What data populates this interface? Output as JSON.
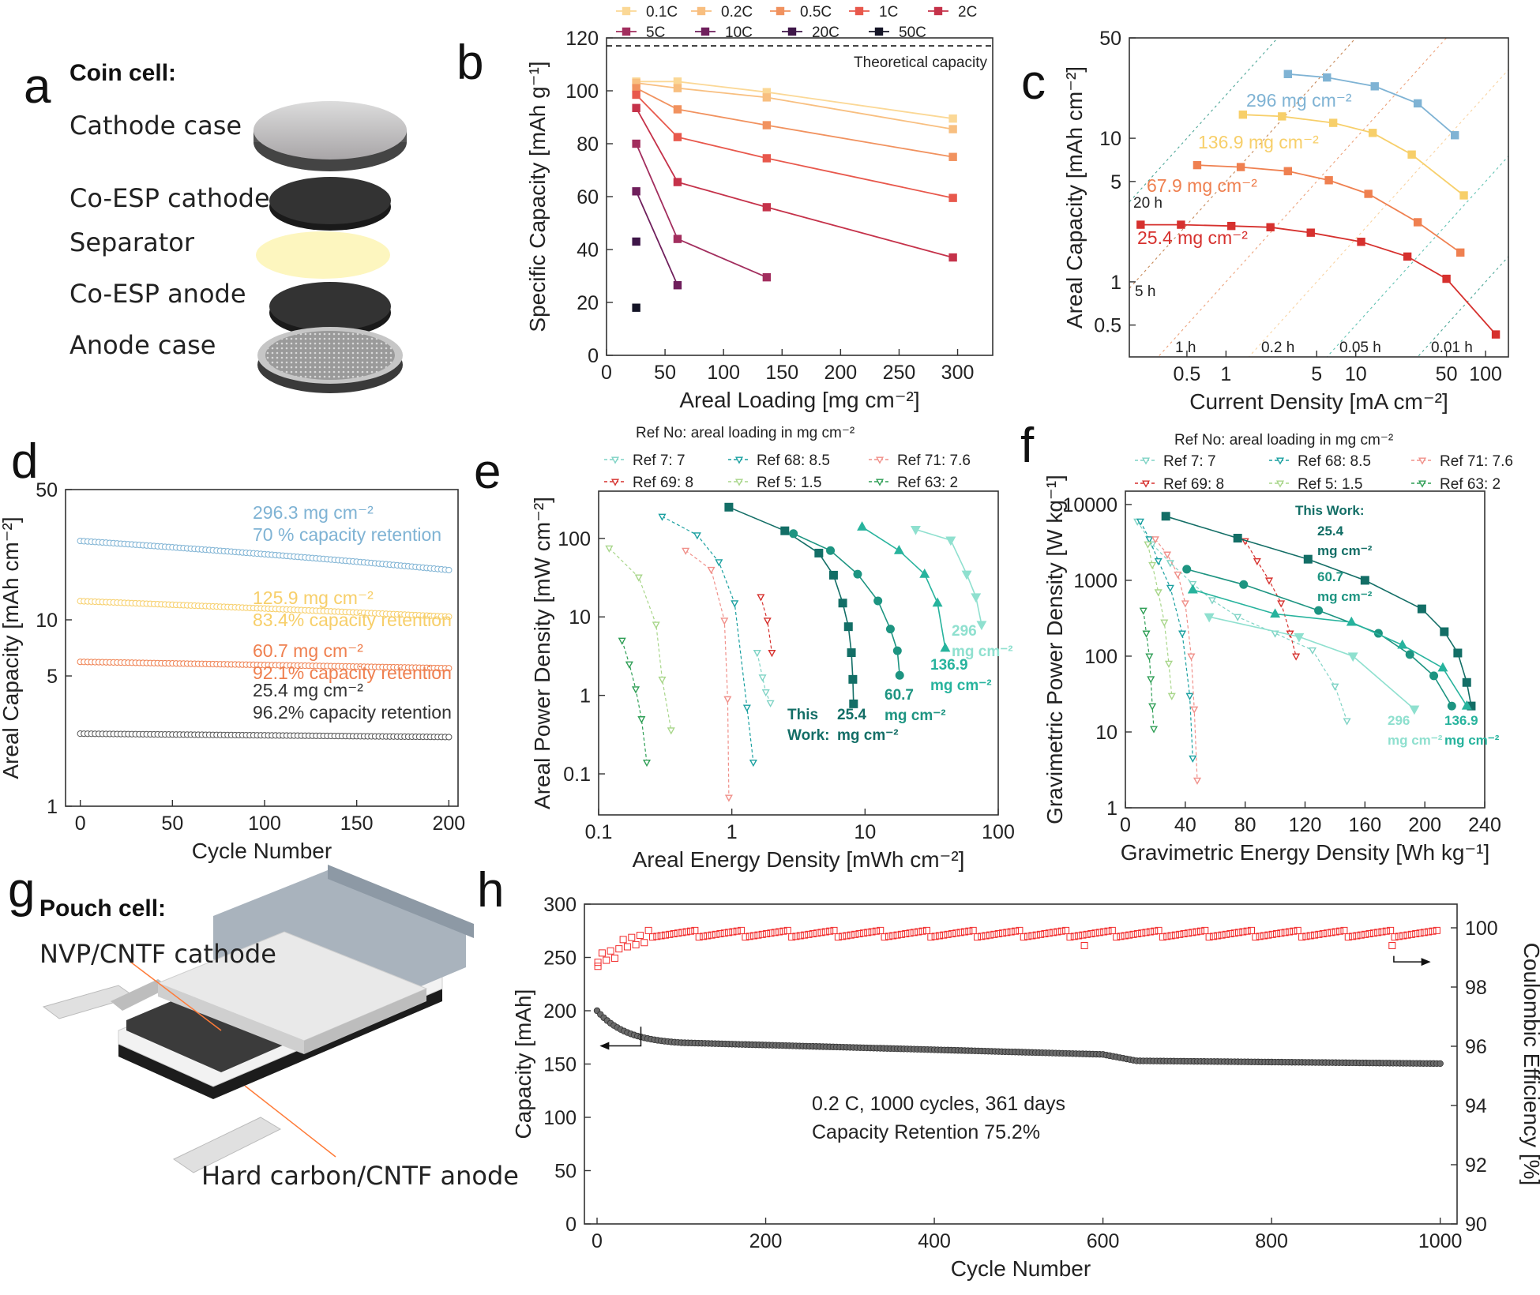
{
  "panel_letters": {
    "a": "a",
    "b": "b",
    "c": "c",
    "d": "d",
    "e": "e",
    "f": "f",
    "g": "g",
    "h": "h"
  },
  "coin_cell": {
    "title": "Coin cell:",
    "layers": [
      "Cathode case",
      "Co-ESP cathode",
      "Separator",
      "Co-ESP anode",
      "Anode case"
    ]
  },
  "pouch_cell": {
    "title": "Pouch cell:",
    "cathode": "NVP/CNTF cathode",
    "anode": "Hard carbon/CNTF anode"
  },
  "colors": {
    "rates": [
      "#fbd896",
      "#f8bf80",
      "#f1925f",
      "#e8584c",
      "#c5324a",
      "#a22e5e",
      "#6f1f5c",
      "#3e1648",
      "#141426"
    ],
    "c_296": "#7fb3d4",
    "c_136": "#f7cf6a",
    "c_67": "#ef8050",
    "c_25": "#d6312e",
    "teal_dark": "#136e66",
    "teal_mid": "#27b39d",
    "teal_light": "#8fe0cf",
    "red_ce": "#f22b2b",
    "grey": "#555555"
  },
  "chart_data": [
    {
      "id": "b",
      "type": "line",
      "xlabel": "Areal Loading [mg cm⁻²]",
      "ylabel": "Specific Capacity [mAh g⁻¹]",
      "xlim": [
        0,
        330
      ],
      "ylim": [
        0,
        120
      ],
      "xticks": [
        0,
        50,
        100,
        150,
        200,
        250,
        300
      ],
      "yticks": [
        0,
        20,
        40,
        60,
        80,
        100,
        120
      ],
      "annotation": "Theoretical capacity",
      "theoretical": 117,
      "legend": [
        "0.1C",
        "0.2C",
        "0.5C",
        "1C",
        "2C",
        "5C",
        "10C",
        "20C",
        "50C"
      ],
      "series": [
        {
          "name": "0.1C",
          "x": [
            25.4,
            60.7,
            136.9,
            296
          ],
          "values": [
            103.5,
            103.5,
            99.5,
            89.5
          ]
        },
        {
          "name": "0.2C",
          "x": [
            25.4,
            60.7,
            136.9,
            296
          ],
          "values": [
            103,
            101,
            97.5,
            85.5
          ]
        },
        {
          "name": "0.5C",
          "x": [
            25.4,
            60.7,
            136.9,
            296
          ],
          "values": [
            101,
            93,
            87,
            75
          ]
        },
        {
          "name": "1C",
          "x": [
            25.4,
            60.7,
            136.9,
            296
          ],
          "values": [
            98.5,
            82.5,
            74.5,
            59.5
          ]
        },
        {
          "name": "2C",
          "x": [
            25.4,
            60.7,
            136.9,
            296
          ],
          "values": [
            93.5,
            65.5,
            56,
            37
          ]
        },
        {
          "name": "5C",
          "x": [
            25.4,
            60.7,
            136.9
          ],
          "values": [
            80,
            44,
            29.5
          ]
        },
        {
          "name": "10C",
          "x": [
            25.4,
            60.7
          ],
          "values": [
            62,
            26.5
          ]
        },
        {
          "name": "20C",
          "x": [
            25.4
          ],
          "values": [
            43
          ]
        },
        {
          "name": "50C",
          "x": [
            25.4
          ],
          "values": [
            18
          ]
        }
      ]
    },
    {
      "id": "c",
      "type": "line",
      "scale": "log-log",
      "xlabel": "Current Density [mA cm⁻²]",
      "ylabel": "Areal Capacity [mAh cm⁻²]",
      "xlim": [
        0.18,
        150
      ],
      "ylim": [
        0.3,
        50
      ],
      "xticks": [
        0.5,
        1,
        5,
        10,
        50,
        100
      ],
      "xticklabels": [
        "0.5",
        "1",
        "5",
        "10",
        "50",
        "100"
      ],
      "yticks": [
        0.5,
        1,
        5,
        10,
        50
      ],
      "yticklabels": [
        "0.5",
        "1",
        "5",
        "10",
        "50"
      ],
      "time_lines": [
        "20 h",
        "5 h",
        "1 h",
        "0.2 h",
        "0.05 h",
        "0.01 h"
      ],
      "series": [
        {
          "name": "296 mg cm⁻²",
          "x": [
            3,
            6,
            14,
            30,
            58
          ],
          "values": [
            28,
            26.5,
            23,
            17.5,
            10.5
          ]
        },
        {
          "name": "136.9 mg cm⁻²",
          "x": [
            1.35,
            2.7,
            6.7,
            13.5,
            27,
            68
          ],
          "values": [
            14.6,
            14.2,
            12.8,
            10.9,
            7.7,
            4
          ]
        },
        {
          "name": "67.9 mg cm⁻²",
          "x": [
            0.6,
            1.3,
            3,
            6.2,
            12.5,
            30,
            64
          ],
          "values": [
            6.5,
            6.3,
            5.9,
            5.1,
            4.1,
            2.6,
            1.6
          ]
        },
        {
          "name": "25.4 mg cm⁻²",
          "x": [
            0.22,
            0.45,
            1.1,
            2.2,
            4.5,
            11,
            25,
            50,
            120
          ],
          "values": [
            2.5,
            2.5,
            2.45,
            2.4,
            2.2,
            1.9,
            1.5,
            1.05,
            0.43
          ]
        }
      ]
    },
    {
      "id": "d",
      "type": "scatter",
      "scale": "log-y",
      "xlabel": "Cycle Number",
      "ylabel": "Areal Capacity [mAh cm⁻²]",
      "xlim": [
        -8,
        205
      ],
      "ylim": [
        1,
        50
      ],
      "xticks": [
        0,
        50,
        100,
        150,
        200
      ],
      "yticks": [
        1,
        5,
        10,
        50
      ],
      "series": [
        {
          "name": "296.3 mg cm⁻²",
          "note": "70 % capacity retention",
          "start": 26.5,
          "end": 18.5
        },
        {
          "name": "125.9 mg cm⁻²",
          "note": "83.4% capacity retention",
          "start": 12.6,
          "end": 10.4
        },
        {
          "name": "60.7 mg cm⁻²",
          "note": "92.1% capacity retention",
          "start": 5.95,
          "end": 5.5
        },
        {
          "name": "25.4 mg cm⁻²",
          "note": "96.2% capacity retention",
          "start": 2.45,
          "end": 2.35
        }
      ]
    },
    {
      "id": "e",
      "type": "line",
      "scale": "log-log",
      "xlabel": "Areal Energy Density [mWh cm⁻²]",
      "ylabel": "Areal Power Density [mW cm⁻²]",
      "xlim": [
        0.1,
        100
      ],
      "ylim": [
        0.03,
        400
      ],
      "xticks": [
        0.1,
        1,
        10,
        100
      ],
      "xticklabels": [
        "0.1",
        "1",
        "10",
        "100"
      ],
      "yticks": [
        0.1,
        1,
        10,
        100
      ],
      "yticklabels": [
        "0.1",
        "1",
        "10",
        "100"
      ],
      "legend_title": "Ref No: areal loading in mg cm⁻²",
      "legend": [
        "Ref 7: 7",
        "Ref 68: 8.5",
        "Ref 71: 7.6",
        "Ref 69: 8",
        "Ref 5: 1.5",
        "Ref 63: 2"
      ],
      "series": [
        {
          "name": "Ref 7: 7",
          "x": [
            1.55,
            1.7,
            1.8,
            1.95
          ],
          "values": [
            3.5,
            1.7,
            1.1,
            0.8
          ]
        },
        {
          "name": "Ref 68: 8.5",
          "x": [
            0.3,
            0.55,
            0.8,
            1.05,
            1.3,
            1.45
          ],
          "values": [
            190,
            110,
            50,
            15,
            0.7,
            0.14
          ]
        },
        {
          "name": "Ref 71: 7.6",
          "x": [
            0.45,
            0.7,
            0.88,
            0.93,
            0.95
          ],
          "values": [
            70,
            40,
            9,
            0.9,
            0.05
          ]
        },
        {
          "name": "Ref 69: 8",
          "x": [
            1.65,
            1.85,
            2.0
          ],
          "values": [
            18,
            9,
            3.5
          ]
        },
        {
          "name": "Ref 5: 1.5",
          "x": [
            0.12,
            0.2,
            0.27,
            0.3,
            0.35
          ],
          "values": [
            75,
            32,
            8,
            1.6,
            0.36
          ]
        },
        {
          "name": "Ref 63: 2",
          "x": [
            0.15,
            0.17,
            0.19,
            0.21,
            0.23
          ],
          "values": [
            5,
            2.5,
            1.2,
            0.5,
            0.14
          ]
        },
        {
          "name": "25.4",
          "x": [
            0.95,
            2.5,
            4.5,
            5.8,
            6.8,
            7.5,
            7.9,
            8.1,
            8.2
          ],
          "values": [
            250,
            125,
            65,
            34,
            15,
            7.5,
            3.5,
            1.6,
            0.78
          ]
        },
        {
          "name": "60.7",
          "x": [
            2.9,
            5.5,
            8.8,
            12.5,
            15.5,
            17.5,
            18.2
          ],
          "values": [
            115,
            70,
            35,
            16,
            7,
            3.7,
            1.8
          ]
        },
        {
          "name": "136.9",
          "x": [
            9.5,
            18,
            28,
            35,
            40
          ],
          "values": [
            140,
            70,
            35,
            15,
            4
          ]
        },
        {
          "name": "296",
          "x": [
            24,
            44,
            58,
            68,
            75
          ],
          "values": [
            130,
            95,
            35,
            18,
            8
          ]
        }
      ],
      "labels": [
        "This",
        "Work:",
        "25.4",
        "mg cm⁻²",
        "60.7",
        "136.9",
        "296"
      ]
    },
    {
      "id": "f",
      "type": "line",
      "scale": "log-y",
      "xlabel": "Gravimetric Energy Density [Wh kg⁻¹]",
      "ylabel": "Gravimetric Power Density [W kg⁻¹]",
      "xlim": [
        0,
        240
      ],
      "ylim": [
        1,
        15000
      ],
      "xticks": [
        0,
        40,
        80,
        120,
        160,
        200,
        240
      ],
      "yticks": [
        1,
        10,
        100,
        1000,
        10000
      ],
      "legend_title": "Ref No: areal loading in mg cm⁻²",
      "legend": [
        "Ref 7: 7",
        "Ref 68: 8.5",
        "Ref 71: 7.6",
        "Ref 69: 8",
        "Ref 5: 1.5",
        "Ref 63: 2"
      ],
      "series": [
        {
          "name": "Ref 7: 7",
          "x": [
            8,
            18,
            30,
            45,
            58,
            75,
            100,
            125,
            140,
            148
          ],
          "values": [
            6000,
            3000,
            1700,
            900,
            550,
            330,
            200,
            120,
            40,
            14
          ]
        },
        {
          "name": "Ref 68: 8.5",
          "x": [
            10,
            16,
            22,
            30,
            38,
            43,
            45
          ],
          "values": [
            6000,
            3500,
            1800,
            800,
            200,
            30,
            4.5
          ]
        },
        {
          "name": "Ref 71: 7.6",
          "x": [
            20,
            28,
            35,
            40,
            44,
            46,
            48
          ],
          "values": [
            3500,
            2200,
            1200,
            500,
            100,
            20,
            2.3
          ]
        },
        {
          "name": "Ref 69: 8",
          "x": [
            80,
            88,
            96,
            104,
            110,
            114
          ],
          "values": [
            3300,
            1800,
            1000,
            500,
            200,
            100
          ]
        },
        {
          "name": "Ref 5: 1.5",
          "x": [
            15,
            18,
            22,
            26,
            29,
            31
          ],
          "values": [
            3000,
            1600,
            700,
            280,
            80,
            30
          ]
        },
        {
          "name": "Ref 63: 2",
          "x": [
            12,
            14,
            16,
            17,
            18,
            19
          ],
          "values": [
            400,
            200,
            100,
            50,
            22,
            11
          ]
        },
        {
          "name": "25.4",
          "x": [
            27,
            75,
            122,
            160,
            198,
            213,
            222,
            228,
            231
          ],
          "values": [
            7000,
            3600,
            1900,
            1000,
            420,
            210,
            110,
            45,
            22
          ]
        },
        {
          "name": "60.7",
          "x": [
            41,
            79,
            129,
            169,
            190,
            206,
            218
          ],
          "values": [
            1400,
            880,
            400,
            200,
            105,
            55,
            22
          ]
        },
        {
          "name": "136.9",
          "x": [
            45,
            100,
            151,
            185,
            212,
            228
          ],
          "values": [
            750,
            360,
            280,
            140,
            70,
            22
          ]
        },
        {
          "name": "296",
          "x": [
            56,
            116,
            152,
            193
          ],
          "values": [
            330,
            180,
            100,
            20
          ]
        }
      ],
      "labels": [
        "This Work:",
        "25.4",
        "mg cm⁻²",
        "60.7",
        "136.9",
        "296"
      ]
    },
    {
      "id": "h",
      "type": "scatter",
      "scale": "dual-axis",
      "xlabel": "Cycle Number",
      "ylabel": "Capacity [mAh]",
      "y2label": "Coulombic Efficiency [%]",
      "xlim": [
        -15,
        1020
      ],
      "ylim": [
        0,
        300
      ],
      "y2lim": [
        90,
        100.8
      ],
      "xticks": [
        0,
        200,
        400,
        600,
        800,
        1000
      ],
      "yticks": [
        0,
        50,
        100,
        150,
        200,
        250,
        300
      ],
      "y2ticks": [
        90,
        92,
        94,
        96,
        98,
        100
      ],
      "annotation": [
        "0.2 C, 1000 cycles, 361 days",
        "Capacity Retention 75.2%"
      ],
      "series": [
        {
          "name": "Capacity",
          "start": 200,
          "end": 150.4
        },
        {
          "name": "Coulombic Efficiency",
          "mean": 99.8,
          "outliers": [
            [
              1,
              98.7
            ],
            [
              578,
              99.4
            ],
            [
              943,
              99.4
            ]
          ]
        }
      ]
    }
  ]
}
